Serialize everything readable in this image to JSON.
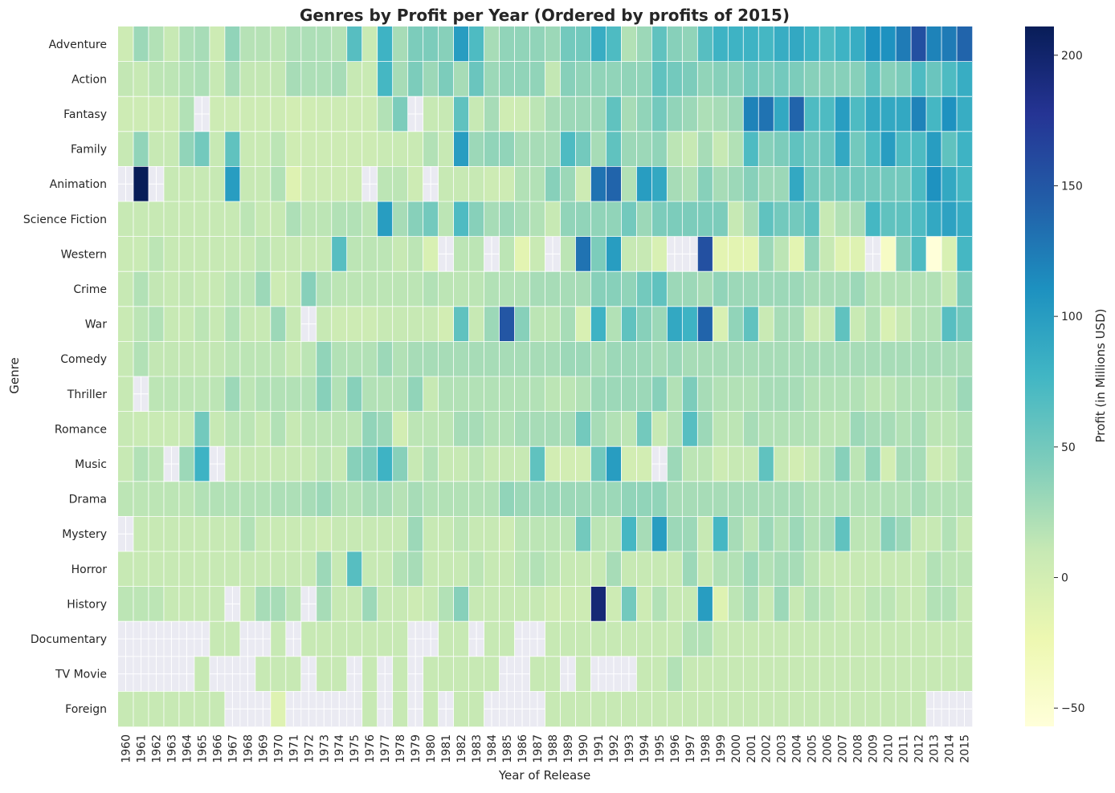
{
  "chart_data": {
    "type": "heatmap",
    "title": "Genres by Profit per Year (Ordered by profits of 2015)",
    "xlabel": "Year of Release",
    "ylabel": "Genre",
    "colorbar_label": "Profit (in Millions USD)",
    "colorbar_range": [
      -57,
      211
    ],
    "colorbar_ticks": [
      -50,
      0,
      50,
      100,
      150,
      200
    ],
    "colormap": "YlGnBu",
    "missing_color": "#eaeaf2",
    "gridlines_between_cells": true,
    "x": [
      "1960",
      "1961",
      "1962",
      "1963",
      "1964",
      "1965",
      "1966",
      "1967",
      "1968",
      "1969",
      "1970",
      "1971",
      "1972",
      "1973",
      "1974",
      "1975",
      "1976",
      "1977",
      "1978",
      "1979",
      "1980",
      "1981",
      "1982",
      "1983",
      "1984",
      "1985",
      "1986",
      "1987",
      "1988",
      "1989",
      "1990",
      "1991",
      "1992",
      "1993",
      "1994",
      "1995",
      "1996",
      "1997",
      "1998",
      "1999",
      "2000",
      "2001",
      "2002",
      "2003",
      "2004",
      "2005",
      "2006",
      "2007",
      "2008",
      "2009",
      "2010",
      "2011",
      "2012",
      "2013",
      "2014",
      "2015"
    ],
    "y": [
      "Adventure",
      "Action",
      "Fantasy",
      "Family",
      "Animation",
      "Science Fiction",
      "Western",
      "Crime",
      "War",
      "Comedy",
      "Thriller",
      "Romance",
      "Music",
      "Drama",
      "Mystery",
      "Horror",
      "History",
      "Documentary",
      "TV Movie",
      "Foreign"
    ],
    "values": [
      [
        5,
        30,
        20,
        10,
        22,
        25,
        5,
        35,
        18,
        18,
        15,
        22,
        22,
        22,
        18,
        65,
        8,
        80,
        25,
        45,
        45,
        40,
        100,
        70,
        25,
        35,
        35,
        35,
        30,
        50,
        50,
        85,
        70,
        20,
        30,
        60,
        40,
        35,
        65,
        80,
        80,
        80,
        75,
        85,
        90,
        80,
        70,
        80,
        85,
        110,
        110,
        125,
        155,
        120,
        125,
        140
      ],
      [
        12,
        10,
        15,
        15,
        20,
        22,
        10,
        25,
        12,
        12,
        12,
        25,
        22,
        22,
        25,
        10,
        8,
        75,
        25,
        45,
        30,
        45,
        25,
        55,
        30,
        35,
        35,
        35,
        12,
        40,
        35,
        35,
        35,
        35,
        35,
        60,
        50,
        45,
        35,
        40,
        40,
        50,
        45,
        50,
        45,
        40,
        40,
        40,
        40,
        60,
        40,
        45,
        70,
        55,
        70,
        85
      ],
      [
        5,
        5,
        5,
        5,
        20,
        null,
        5,
        5,
        5,
        5,
        5,
        0,
        3,
        5,
        5,
        5,
        5,
        20,
        45,
        null,
        10,
        10,
        60,
        10,
        25,
        3,
        5,
        15,
        25,
        30,
        30,
        30,
        60,
        25,
        35,
        50,
        35,
        30,
        22,
        25,
        30,
        120,
        130,
        90,
        140,
        70,
        70,
        100,
        70,
        90,
        90,
        90,
        120,
        75,
        110,
        85
      ],
      [
        10,
        35,
        10,
        10,
        35,
        50,
        10,
        60,
        8,
        8,
        15,
        3,
        5,
        5,
        5,
        5,
        5,
        8,
        8,
        8,
        20,
        10,
        100,
        30,
        35,
        35,
        25,
        25,
        25,
        70,
        50,
        25,
        60,
        30,
        30,
        35,
        15,
        10,
        25,
        10,
        20,
        70,
        40,
        45,
        60,
        50,
        55,
        90,
        50,
        70,
        100,
        70,
        70,
        100,
        60,
        80
      ],
      [
        null,
        211,
        null,
        10,
        10,
        10,
        10,
        100,
        10,
        10,
        20,
        -10,
        5,
        5,
        5,
        5,
        null,
        15,
        15,
        5,
        null,
        10,
        10,
        10,
        5,
        5,
        20,
        20,
        40,
        30,
        5,
        130,
        140,
        20,
        100,
        90,
        25,
        20,
        40,
        25,
        30,
        40,
        30,
        30,
        90,
        50,
        45,
        50,
        50,
        50,
        50,
        50,
        70,
        110,
        90,
        75
      ],
      [
        10,
        10,
        10,
        10,
        10,
        10,
        10,
        10,
        15,
        10,
        10,
        22,
        15,
        15,
        20,
        20,
        15,
        100,
        25,
        40,
        50,
        15,
        70,
        40,
        25,
        30,
        25,
        20,
        10,
        35,
        35,
        35,
        35,
        50,
        30,
        45,
        45,
        45,
        45,
        45,
        10,
        25,
        60,
        50,
        50,
        60,
        10,
        20,
        25,
        75,
        60,
        60,
        70,
        90,
        95,
        85
      ],
      [
        8,
        8,
        15,
        10,
        10,
        10,
        10,
        10,
        10,
        15,
        10,
        10,
        10,
        10,
        65,
        15,
        15,
        15,
        10,
        15,
        -5,
        null,
        15,
        15,
        null,
        15,
        -15,
        8,
        null,
        15,
        130,
        45,
        100,
        10,
        10,
        -5,
        null,
        null,
        155,
        -15,
        -15,
        -15,
        30,
        15,
        -15,
        35,
        10,
        -10,
        -10,
        null,
        -40,
        40,
        70,
        -57,
        -5,
        75
      ],
      [
        10,
        20,
        12,
        10,
        12,
        10,
        10,
        15,
        15,
        30,
        5,
        10,
        40,
        20,
        15,
        15,
        15,
        15,
        15,
        15,
        20,
        15,
        15,
        15,
        20,
        20,
        20,
        25,
        25,
        25,
        25,
        40,
        40,
        35,
        50,
        60,
        30,
        30,
        25,
        35,
        30,
        30,
        30,
        30,
        30,
        25,
        25,
        25,
        30,
        20,
        20,
        20,
        20,
        20,
        10,
        45
      ],
      [
        8,
        15,
        20,
        10,
        10,
        15,
        10,
        20,
        10,
        10,
        30,
        10,
        null,
        10,
        5,
        5,
        5,
        10,
        10,
        10,
        10,
        0,
        60,
        10,
        30,
        150,
        40,
        15,
        15,
        25,
        -5,
        80,
        20,
        60,
        40,
        30,
        90,
        80,
        140,
        -5,
        35,
        60,
        8,
        25,
        25,
        5,
        10,
        60,
        8,
        20,
        -5,
        10,
        20,
        20,
        65,
        50
      ],
      [
        10,
        20,
        12,
        12,
        12,
        12,
        12,
        15,
        15,
        15,
        15,
        10,
        15,
        35,
        20,
        20,
        20,
        30,
        20,
        25,
        25,
        25,
        25,
        25,
        25,
        25,
        25,
        25,
        25,
        30,
        30,
        25,
        30,
        30,
        30,
        25,
        30,
        25,
        25,
        25,
        25,
        25,
        25,
        25,
        25,
        25,
        25,
        25,
        25,
        25,
        25,
        25,
        25,
        25,
        25,
        25
      ],
      [
        10,
        null,
        15,
        15,
        15,
        15,
        15,
        30,
        15,
        20,
        20,
        20,
        20,
        40,
        20,
        40,
        20,
        20,
        20,
        35,
        10,
        20,
        20,
        20,
        20,
        20,
        20,
        20,
        15,
        15,
        20,
        30,
        30,
        30,
        30,
        40,
        20,
        45,
        25,
        20,
        20,
        20,
        25,
        25,
        25,
        20,
        20,
        20,
        20,
        15,
        15,
        20,
        20,
        20,
        20,
        30
      ],
      [
        10,
        8,
        8,
        8,
        10,
        50,
        10,
        15,
        15,
        10,
        20,
        10,
        15,
        15,
        15,
        15,
        35,
        30,
        0,
        15,
        15,
        15,
        25,
        25,
        20,
        20,
        25,
        25,
        25,
        25,
        50,
        25,
        20,
        15,
        50,
        10,
        20,
        65,
        30,
        15,
        15,
        25,
        20,
        20,
        20,
        20,
        15,
        15,
        30,
        25,
        25,
        20,
        25,
        15,
        15,
        20
      ],
      [
        10,
        20,
        15,
        null,
        30,
        80,
        null,
        10,
        10,
        10,
        10,
        10,
        10,
        15,
        10,
        40,
        45,
        80,
        40,
        10,
        20,
        10,
        10,
        15,
        10,
        10,
        10,
        60,
        0,
        0,
        0,
        50,
        100,
        0,
        0,
        null,
        30,
        15,
        15,
        5,
        10,
        10,
        60,
        10,
        0,
        10,
        20,
        40,
        15,
        35,
        0,
        25,
        25,
        5,
        10,
        20
      ],
      [
        15,
        15,
        15,
        15,
        15,
        20,
        20,
        20,
        20,
        20,
        22,
        22,
        25,
        30,
        20,
        20,
        25,
        25,
        18,
        25,
        20,
        20,
        20,
        20,
        20,
        35,
        30,
        30,
        30,
        30,
        30,
        30,
        30,
        35,
        35,
        35,
        25,
        25,
        25,
        25,
        25,
        25,
        25,
        25,
        25,
        20,
        20,
        20,
        20,
        20,
        20,
        20,
        25,
        20,
        20,
        20
      ],
      [
        null,
        10,
        10,
        10,
        10,
        10,
        10,
        10,
        20,
        10,
        8,
        8,
        8,
        5,
        10,
        10,
        10,
        10,
        10,
        30,
        10,
        10,
        15,
        10,
        10,
        5,
        15,
        15,
        15,
        15,
        50,
        15,
        15,
        75,
        25,
        100,
        30,
        30,
        10,
        75,
        25,
        15,
        30,
        20,
        30,
        20,
        25,
        60,
        15,
        15,
        40,
        30,
        10,
        10,
        20,
        10
      ],
      [
        10,
        10,
        10,
        10,
        10,
        10,
        10,
        10,
        10,
        10,
        10,
        10,
        10,
        30,
        10,
        65,
        10,
        10,
        20,
        25,
        10,
        10,
        10,
        15,
        10,
        10,
        15,
        20,
        15,
        10,
        10,
        10,
        25,
        10,
        10,
        10,
        10,
        30,
        10,
        20,
        20,
        30,
        20,
        25,
        25,
        15,
        10,
        10,
        10,
        10,
        10,
        10,
        10,
        20,
        15,
        15
      ],
      [
        15,
        15,
        15,
        10,
        10,
        10,
        10,
        null,
        10,
        25,
        25,
        15,
        null,
        25,
        10,
        10,
        30,
        10,
        10,
        5,
        10,
        20,
        40,
        10,
        10,
        10,
        10,
        10,
        5,
        5,
        5,
        195,
        5,
        50,
        5,
        20,
        10,
        10,
        100,
        -10,
        15,
        25,
        10,
        30,
        10,
        20,
        15,
        10,
        10,
        15,
        15,
        10,
        10,
        20,
        20,
        10
      ],
      [
        null,
        null,
        null,
        null,
        null,
        null,
        10,
        10,
        null,
        null,
        10,
        null,
        10,
        10,
        10,
        10,
        10,
        10,
        10,
        null,
        null,
        10,
        10,
        null,
        10,
        10,
        null,
        null,
        10,
        10,
        10,
        10,
        10,
        10,
        10,
        10,
        10,
        20,
        20,
        10,
        10,
        10,
        10,
        10,
        10,
        10,
        10,
        10,
        10,
        10,
        10,
        10,
        10,
        10,
        10,
        10
      ],
      [
        null,
        null,
        null,
        null,
        null,
        10,
        null,
        null,
        null,
        10,
        10,
        10,
        null,
        10,
        10,
        null,
        10,
        null,
        10,
        null,
        10,
        10,
        10,
        10,
        10,
        null,
        null,
        10,
        10,
        null,
        10,
        null,
        null,
        null,
        10,
        10,
        20,
        10,
        10,
        10,
        10,
        10,
        10,
        10,
        10,
        10,
        10,
        10,
        10,
        10,
        10,
        10,
        10,
        10,
        10,
        10
      ],
      [
        10,
        10,
        10,
        10,
        10,
        10,
        10,
        null,
        null,
        null,
        -10,
        null,
        null,
        null,
        null,
        null,
        10,
        null,
        10,
        null,
        10,
        null,
        10,
        10,
        null,
        null,
        null,
        null,
        10,
        10,
        10,
        10,
        10,
        10,
        10,
        10,
        10,
        10,
        10,
        10,
        10,
        10,
        10,
        10,
        10,
        10,
        10,
        10,
        10,
        10,
        10,
        10,
        10,
        null,
        null,
        null
      ]
    ]
  }
}
